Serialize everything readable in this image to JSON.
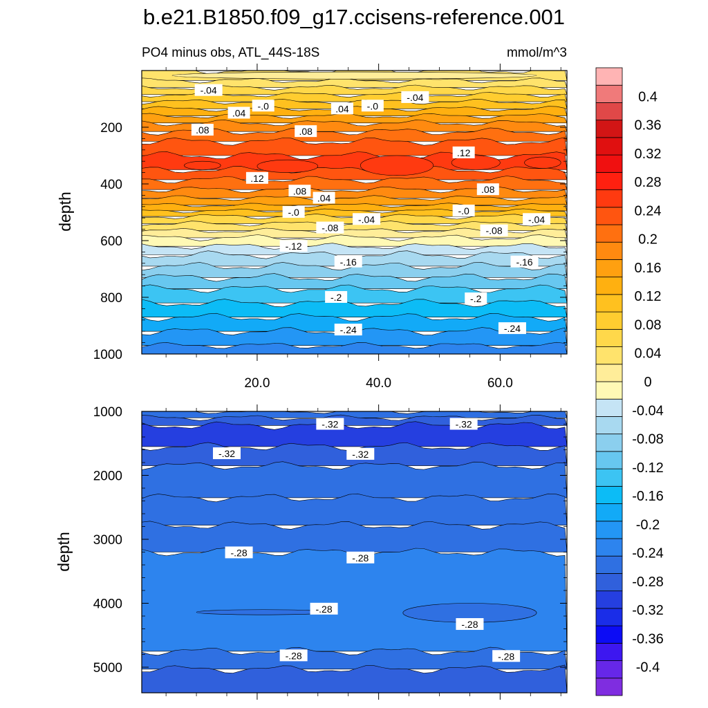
{
  "figure": {
    "title": "b.e21.B1850.f09_g17.ccisens-reference.001",
    "left_subtitle": "PO4 minus obs, ATL_44S-18S",
    "right_subtitle": "mmol/m^3"
  },
  "chart_data": [
    {
      "type": "heatmap",
      "panel": "upper",
      "xlabel": "",
      "ylabel": "depth",
      "xlim": [
        1,
        71
      ],
      "ylim": [
        1000,
        0
      ],
      "x_ticks": [
        "20.0",
        "40.0",
        "60.0"
      ],
      "x_tick_values": [
        20,
        40,
        60
      ],
      "y_ticks": [
        "200",
        "400",
        "600",
        "800",
        "1000"
      ],
      "y_tick_values": [
        200,
        400,
        600,
        800,
        1000
      ],
      "bands": [
        {
          "top": 0,
          "bottom": 35,
          "value": -0.06
        },
        {
          "top": 35,
          "bottom": 60,
          "value": -0.05
        },
        {
          "top": 60,
          "bottom": 85,
          "value": -0.04
        },
        {
          "top": 85,
          "bottom": 110,
          "value": -0.02
        },
        {
          "top": 110,
          "bottom": 135,
          "value": 0.01
        },
        {
          "top": 135,
          "bottom": 160,
          "value": 0.03
        },
        {
          "top": 160,
          "bottom": 185,
          "value": 0.05
        },
        {
          "top": 185,
          "bottom": 215,
          "value": 0.07
        },
        {
          "top": 215,
          "bottom": 250,
          "value": 0.09
        },
        {
          "top": 250,
          "bottom": 300,
          "value": 0.11
        },
        {
          "top": 300,
          "bottom": 350,
          "value": 0.13
        },
        {
          "top": 350,
          "bottom": 385,
          "value": 0.11
        },
        {
          "top": 385,
          "bottom": 420,
          "value": 0.09
        },
        {
          "top": 420,
          "bottom": 450,
          "value": 0.07
        },
        {
          "top": 450,
          "bottom": 475,
          "value": 0.05
        },
        {
          "top": 475,
          "bottom": 495,
          "value": 0.03
        },
        {
          "top": 495,
          "bottom": 515,
          "value": 0.01
        },
        {
          "top": 515,
          "bottom": 540,
          "value": -0.03
        },
        {
          "top": 540,
          "bottom": 565,
          "value": -0.05
        },
        {
          "top": 565,
          "bottom": 590,
          "value": -0.07
        },
        {
          "top": 590,
          "bottom": 620,
          "value": -0.09
        },
        {
          "top": 620,
          "bottom": 650,
          "value": -0.11
        },
        {
          "top": 650,
          "bottom": 690,
          "value": -0.13
        },
        {
          "top": 690,
          "bottom": 730,
          "value": -0.15
        },
        {
          "top": 730,
          "bottom": 770,
          "value": -0.17
        },
        {
          "top": 770,
          "bottom": 820,
          "value": -0.19
        },
        {
          "top": 820,
          "bottom": 870,
          "value": -0.21
        },
        {
          "top": 870,
          "bottom": 920,
          "value": -0.23
        },
        {
          "top": 920,
          "bottom": 970,
          "value": -0.25
        },
        {
          "top": 970,
          "bottom": 1000,
          "value": -0.27
        }
      ],
      "patches": [
        {
          "x": 8,
          "y": 320,
          "w": 6,
          "h": 30,
          "value": 0.13
        },
        {
          "x": 20,
          "y": 315,
          "w": 10,
          "h": 45,
          "value": 0.13
        },
        {
          "x": 37,
          "y": 300,
          "w": 12,
          "h": 70,
          "value": 0.13
        },
        {
          "x": 52,
          "y": 300,
          "w": 8,
          "h": 50,
          "value": 0.13
        },
        {
          "x": 64,
          "y": 305,
          "w": 6,
          "h": 40,
          "value": 0.13
        },
        {
          "x": 6,
          "y": 5,
          "w": 60,
          "h": 25,
          "value": -0.07
        }
      ],
      "contour_labels": [
        {
          "x": 12,
          "y": 70,
          "text": "-.04"
        },
        {
          "x": 21,
          "y": 125,
          "text": "-.0"
        },
        {
          "x": 17,
          "y": 150,
          "text": ".04"
        },
        {
          "x": 11,
          "y": 210,
          "text": ".08"
        },
        {
          "x": 28,
          "y": 215,
          "text": ".08"
        },
        {
          "x": 34,
          "y": 135,
          "text": ".04"
        },
        {
          "x": 39,
          "y": 125,
          "text": "-.0"
        },
        {
          "x": 46,
          "y": 95,
          "text": "-.04"
        },
        {
          "x": 20,
          "y": 380,
          "text": ".12"
        },
        {
          "x": 54,
          "y": 290,
          "text": ".12"
        },
        {
          "x": 27,
          "y": 425,
          "text": ".08"
        },
        {
          "x": 31,
          "y": 450,
          "text": ".04"
        },
        {
          "x": 58,
          "y": 420,
          "text": ".08"
        },
        {
          "x": 26,
          "y": 500,
          "text": "-.0"
        },
        {
          "x": 54,
          "y": 495,
          "text": "-.0"
        },
        {
          "x": 32,
          "y": 555,
          "text": "-.08"
        },
        {
          "x": 38,
          "y": 525,
          "text": "-.04"
        },
        {
          "x": 59,
          "y": 565,
          "text": "-.08"
        },
        {
          "x": 66,
          "y": 525,
          "text": "-.04"
        },
        {
          "x": 26,
          "y": 620,
          "text": "-.12"
        },
        {
          "x": 35,
          "y": 675,
          "text": "-.16"
        },
        {
          "x": 64,
          "y": 675,
          "text": "-.16"
        },
        {
          "x": 33,
          "y": 800,
          "text": "-.2"
        },
        {
          "x": 56,
          "y": 805,
          "text": "-.2"
        },
        {
          "x": 35,
          "y": 915,
          "text": "-.24"
        },
        {
          "x": 62,
          "y": 910,
          "text": "-.24"
        }
      ]
    },
    {
      "type": "heatmap",
      "panel": "lower",
      "xlabel": "",
      "ylabel": "depth",
      "xlim": [
        1,
        71
      ],
      "ylim": [
        5400,
        1000
      ],
      "y_ticks": [
        "1000",
        "2000",
        "3000",
        "4000",
        "5000"
      ],
      "y_tick_values": [
        1000,
        2000,
        3000,
        4000,
        5000
      ],
      "bands": [
        {
          "top": 1000,
          "bottom": 1100,
          "value": -0.29
        },
        {
          "top": 1100,
          "bottom": 1220,
          "value": -0.31
        },
        {
          "top": 1220,
          "bottom": 1550,
          "value": -0.33
        },
        {
          "top": 1550,
          "bottom": 1850,
          "value": -0.31
        },
        {
          "top": 1850,
          "bottom": 2350,
          "value": -0.29
        },
        {
          "top": 2350,
          "bottom": 2780,
          "value": -0.29
        },
        {
          "top": 2780,
          "bottom": 3200,
          "value": -0.29
        },
        {
          "top": 3200,
          "bottom": 4750,
          "value": -0.27
        },
        {
          "top": 4750,
          "bottom": 5030,
          "value": -0.29
        },
        {
          "top": 5030,
          "bottom": 5400,
          "value": -0.31
        }
      ],
      "patches": [
        {
          "x": 44,
          "y": 4000,
          "w": 22,
          "h": 300,
          "value": -0.29
        },
        {
          "x": 10,
          "y": 4100,
          "w": 22,
          "h": 80,
          "value": -0.29
        }
      ],
      "contour_labels": [
        {
          "x": 32,
          "y": 1200,
          "text": "-.32"
        },
        {
          "x": 54,
          "y": 1200,
          "text": "-.32"
        },
        {
          "x": 15,
          "y": 1660,
          "text": "-.32"
        },
        {
          "x": 37,
          "y": 1670,
          "text": "-.32"
        },
        {
          "x": 17,
          "y": 3210,
          "text": "-.28"
        },
        {
          "x": 37,
          "y": 3290,
          "text": "-.28"
        },
        {
          "x": 31,
          "y": 4090,
          "text": "-.28"
        },
        {
          "x": 55,
          "y": 4330,
          "text": "-.28"
        },
        {
          "x": 26,
          "y": 4820,
          "text": "-.28"
        },
        {
          "x": 61,
          "y": 4830,
          "text": "-.28"
        }
      ]
    }
  ],
  "colorbar": {
    "colors": [
      "#7f2de0",
      "#6627e8",
      "#3d17f0",
      "#0c0cf5",
      "#1a2de8",
      "#253fe0",
      "#3060dc",
      "#2f70e2",
      "#2d84ee",
      "#2396f5",
      "#12aaf7",
      "#0cbcf6",
      "#3cc4f3",
      "#67c7f0",
      "#8bcfee",
      "#a8d9f0",
      "#c5e4f5",
      "#fff9b5",
      "#ffed99",
      "#ffe36c",
      "#ffd84a",
      "#ffcd30",
      "#ffc11f",
      "#ffb010",
      "#ffa010",
      "#ff8a10",
      "#ff7010",
      "#ff5510",
      "#ff3a10",
      "#ff2010",
      "#f01010",
      "#e01010",
      "#d21515",
      "#e04848",
      "#f07a7a",
      "#ffb4b4"
    ],
    "labels": [
      "-0.4",
      "-0.36",
      "-0.32",
      "-0.28",
      "-0.24",
      "-0.2",
      "-0.16",
      "-0.12",
      "-0.08",
      "-0.04",
      "0",
      "0.04",
      "0.08",
      "0.12",
      "0.16",
      "0.2",
      "0.24",
      "0.28",
      "0.32",
      "0.36",
      "0.4"
    ],
    "min": -0.44,
    "max": 0.44,
    "step": 0.02
  }
}
